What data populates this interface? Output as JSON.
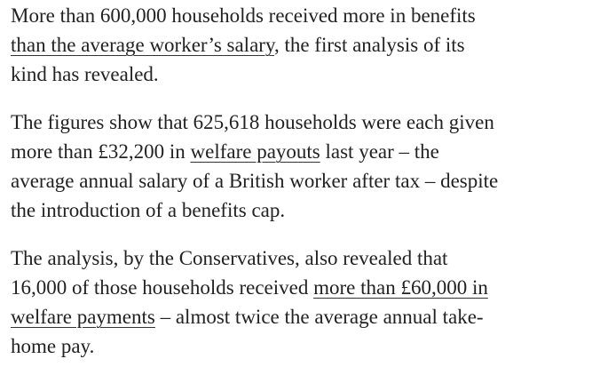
{
  "article": {
    "paragraphs": [
      {
        "lines": [
          [
            {
              "text": "More than 600,000 households received more in benefits"
            }
          ],
          [
            {
              "link": "than the average worker’s salary"
            },
            {
              "text": ", the first analysis of its"
            }
          ],
          [
            {
              "text": "kind has revealed."
            }
          ]
        ]
      },
      {
        "lines": [
          [
            {
              "text": "The figures show that 625,618 households were each given"
            }
          ],
          [
            {
              "text": "more than £32,200 in "
            },
            {
              "link": "welfare payouts"
            },
            {
              "text": " last year – the"
            }
          ],
          [
            {
              "text": "average annual salary of a British worker after tax – despite"
            }
          ],
          [
            {
              "text": "the introduction of a benefits cap."
            }
          ]
        ]
      },
      {
        "lines": [
          [
            {
              "text": "The analysis, by the Conservatives, also revealed that"
            }
          ],
          [
            {
              "text": "16,000 of those households received "
            },
            {
              "link": "more than £60,000 in"
            }
          ],
          [
            {
              "link": "welfare payments"
            },
            {
              "text": " – almost twice the average annual take-"
            }
          ],
          [
            {
              "text": "home pay."
            }
          ]
        ]
      }
    ]
  }
}
